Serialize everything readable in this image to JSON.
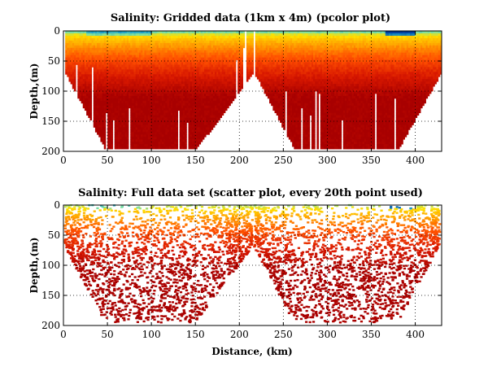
{
  "chart_data": [
    {
      "type": "heatmap",
      "title": "Salinity: Gridded data (1km x 4m) (pcolor plot)",
      "xlabel": "",
      "ylabel": "Depth,(m)",
      "xlim": [
        0,
        430
      ],
      "ylim": [
        0,
        200
      ],
      "y_reversed": true,
      "xticks": [
        0,
        50,
        100,
        150,
        200,
        250,
        300,
        350,
        400
      ],
      "yticks": [
        0,
        50,
        100,
        150,
        200
      ],
      "grid": true,
      "colormap": [
        "#003f9e",
        "#1ea0c8",
        "#7fe0a0",
        "#ffe000",
        "#ffa000",
        "#ff5000",
        "#d81800",
        "#a80000"
      ],
      "sections": [
        {
          "x_start": 2,
          "x_end": 215,
          "top_x_start": 2,
          "top_x_end": 215,
          "bottom_x_start": 47,
          "bottom_x_end": 150,
          "max_depth": 195
        },
        {
          "x_start": 217,
          "x_end": 428,
          "top_x_start": 217,
          "top_x_end": 428,
          "bottom_x_start": 262,
          "bottom_x_end": 380,
          "max_depth": 195
        }
      ]
    },
    {
      "type": "scatter",
      "title": "Salinity: Full data set (scatter plot, every 20th point used)",
      "xlabel": "Distance, (km)",
      "ylabel": "Depth,(m)",
      "xlim": [
        0,
        430
      ],
      "ylim": [
        0,
        200
      ],
      "y_reversed": true,
      "xticks": [
        0,
        50,
        100,
        150,
        200,
        250,
        300,
        350,
        400
      ],
      "yticks": [
        0,
        50,
        100,
        150,
        200
      ],
      "grid": true,
      "colormap": [
        "#003f9e",
        "#1ea0c8",
        "#7fe0a0",
        "#ffe000",
        "#ffa000",
        "#ff5000",
        "#d81800",
        "#a80000"
      ],
      "sections": [
        {
          "x_start": 2,
          "x_end": 215,
          "top_x_start": 2,
          "top_x_end": 215,
          "bottom_x_start": 47,
          "bottom_x_end": 150,
          "max_depth": 195
        },
        {
          "x_start": 217,
          "x_end": 428,
          "top_x_start": 217,
          "top_x_end": 428,
          "bottom_x_start": 262,
          "bottom_x_end": 380,
          "max_depth": 195
        }
      ]
    }
  ]
}
